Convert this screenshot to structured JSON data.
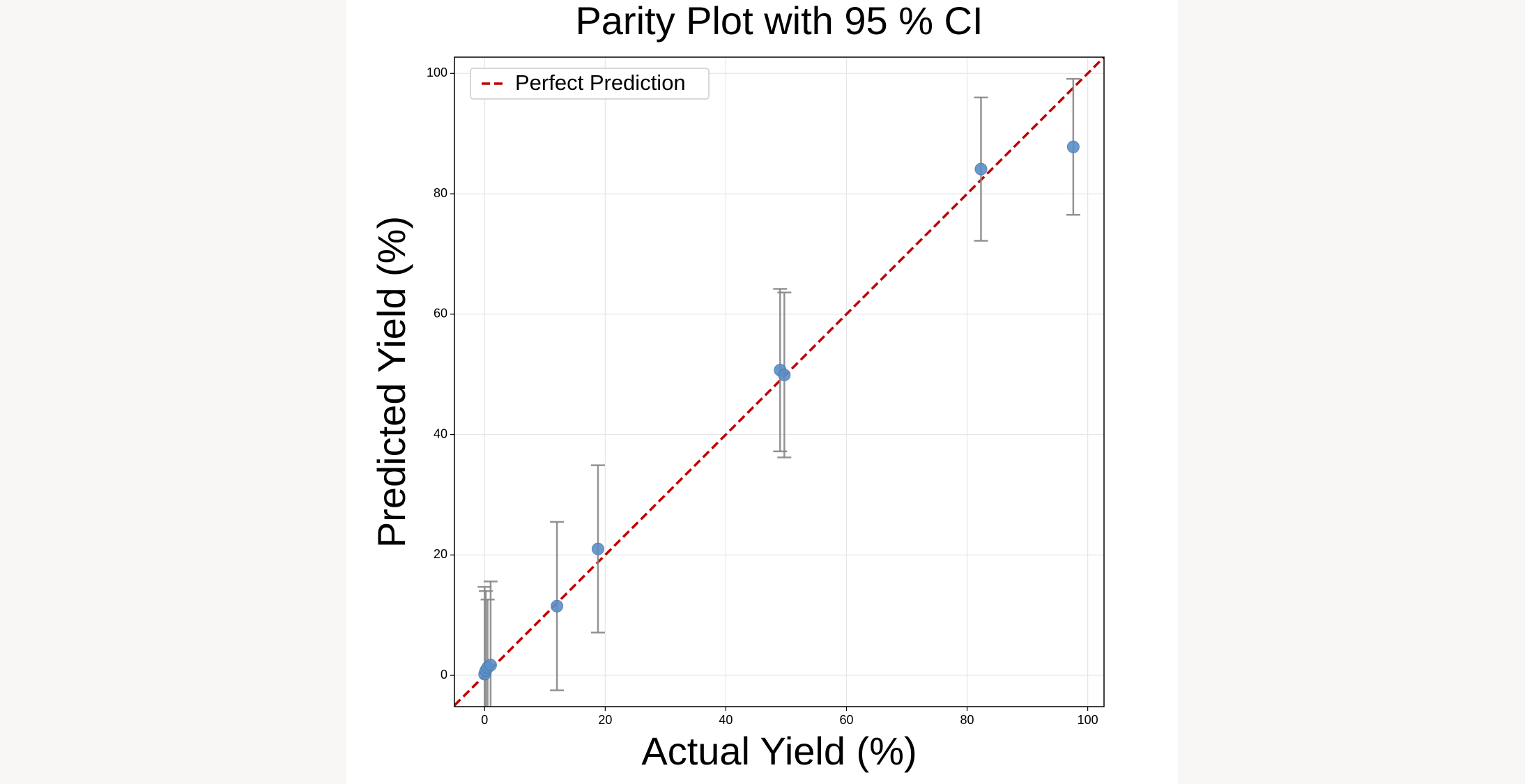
{
  "chart_data": {
    "type": "scatter",
    "title": "Parity Plot with 95 % CI",
    "x_label": "Actual Yield (%)",
    "y_label": "Predicted Yield (%)",
    "x": [
      0,
      0.2,
      0.5,
      1.0,
      12,
      18.8,
      49,
      49.7,
      82.3,
      97.6
    ],
    "values": [
      0.2,
      0.8,
      1.3,
      1.7,
      11.5,
      21,
      50.7,
      49.9,
      84.1,
      87.8
    ],
    "errors": [
      14.5,
      13.2,
      11.3,
      13.9,
      14,
      13.9,
      13.5,
      13.7,
      11.9,
      11.3
    ],
    "color": "#5b8fc7",
    "error_color": "#888888",
    "reference_line": {
      "name": "Perfect Prediction",
      "color": "#c00000"
    },
    "xlim": [
      -5,
      102.7
    ],
    "ylim": [
      -5.2,
      102.7
    ],
    "xticks": [
      0,
      20,
      40,
      60,
      80,
      100
    ],
    "yticks": [
      0,
      20,
      40,
      60,
      80,
      100
    ],
    "grid": true,
    "legend_position": "upper left"
  }
}
